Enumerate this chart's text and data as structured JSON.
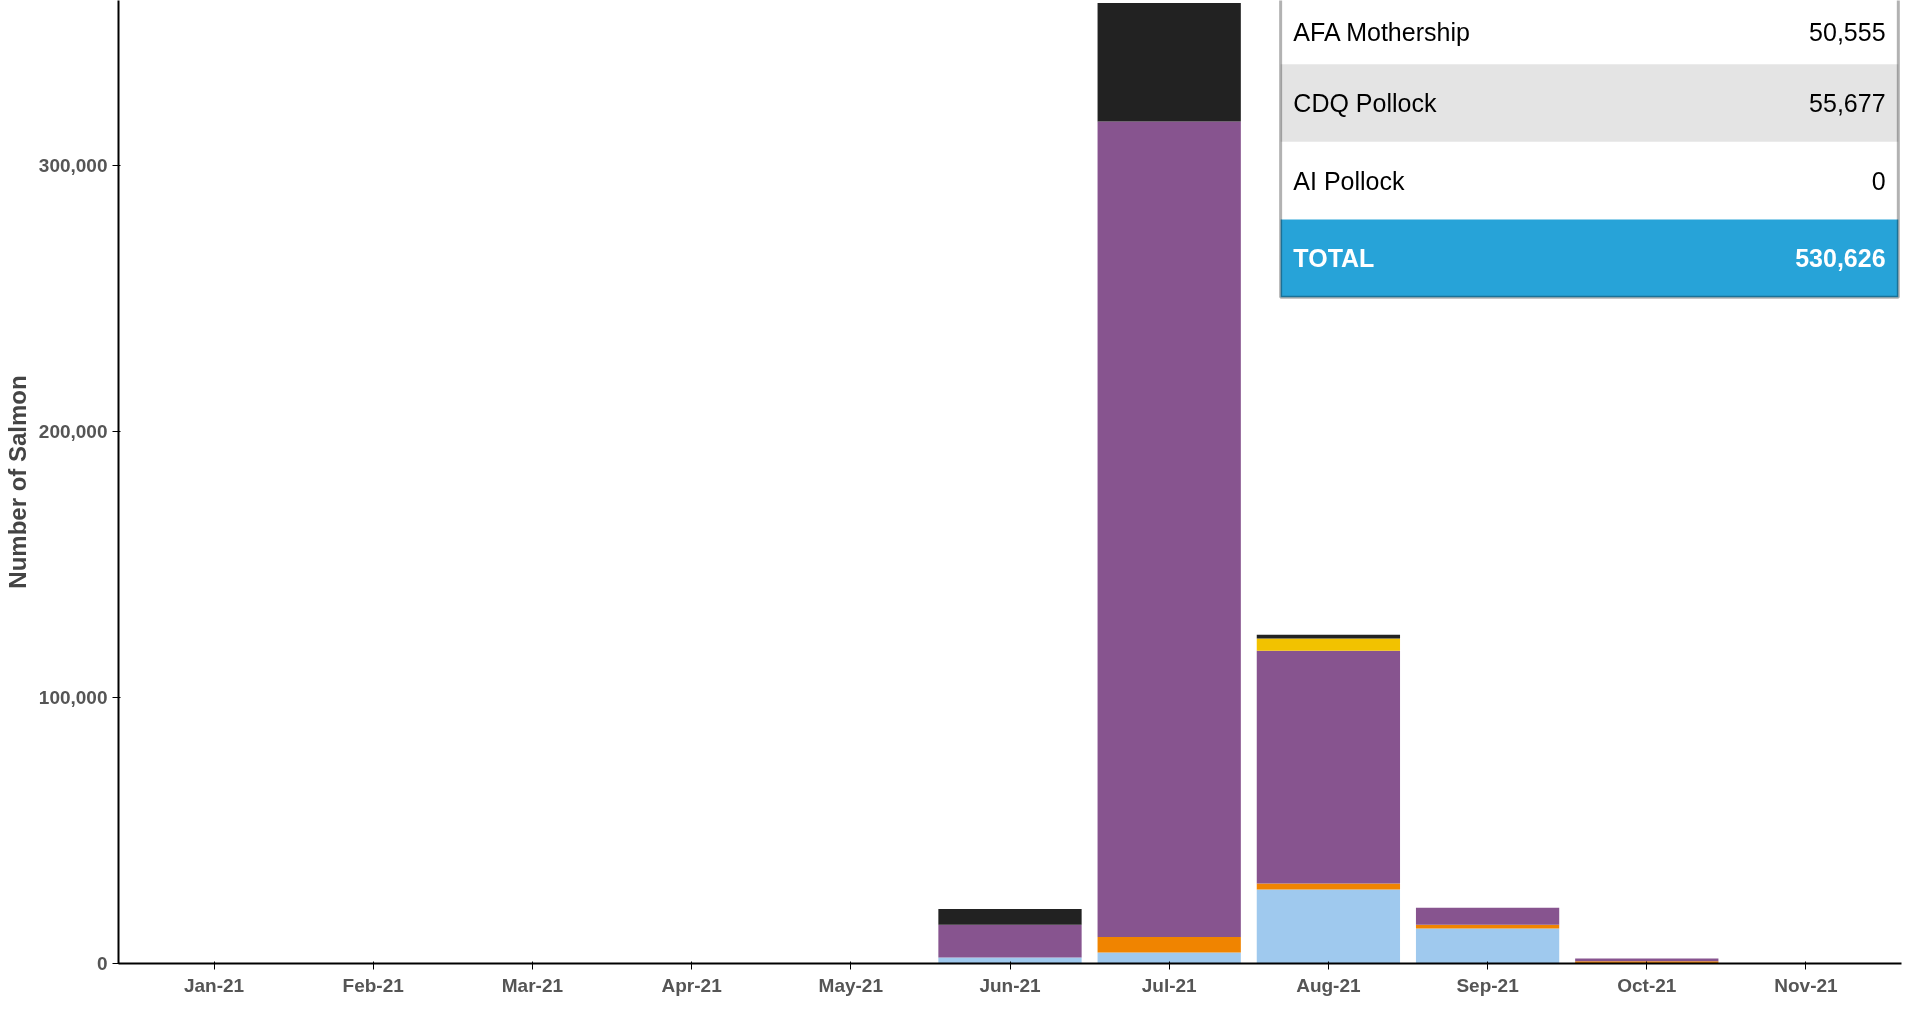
{
  "chart_data": {
    "type": "bar",
    "stacked": true,
    "ylabel": "Number of Salmon",
    "categories": [
      "Jan-21",
      "Feb-21",
      "Mar-21",
      "Apr-21",
      "May-21",
      "Jun-21",
      "Jul-21",
      "Aug-21",
      "Sep-21",
      "Oct-21",
      "Nov-21"
    ],
    "series": [
      {
        "color": "#9fc9ee",
        "values": [
          0,
          0,
          0,
          0,
          0,
          2300,
          4100,
          27800,
          13200,
          0,
          0
        ]
      },
      {
        "color": "#f08400",
        "values": [
          0,
          0,
          0,
          0,
          0,
          0,
          5900,
          2300,
          1400,
          800,
          0
        ]
      },
      {
        "color": "#87548f",
        "values": [
          0,
          0,
          0,
          0,
          0,
          12300,
          306500,
          87500,
          6400,
          1100,
          0
        ]
      },
      {
        "color": "#f2c200",
        "values": [
          0,
          0,
          0,
          0,
          0,
          0,
          0,
          4600,
          0,
          0,
          0
        ]
      },
      {
        "color": "#222222",
        "values": [
          0,
          0,
          0,
          0,
          0,
          5900,
          44600,
          1400,
          0,
          0,
          0
        ]
      }
    ],
    "ylim": [
      0,
      362000
    ],
    "yticks": [
      0,
      {
        "value": 100000,
        "label": "100,000"
      },
      {
        "value": 200000,
        "label": "200,000"
      },
      {
        "value": 300000,
        "label": "300,000"
      }
    ],
    "grid": false,
    "annotations": [
      "AFA Mothership",
      "50,555",
      "CDQ Pollock",
      "55,677",
      "AI Pollock",
      "0",
      "TOTAL",
      "530,626"
    ]
  }
}
